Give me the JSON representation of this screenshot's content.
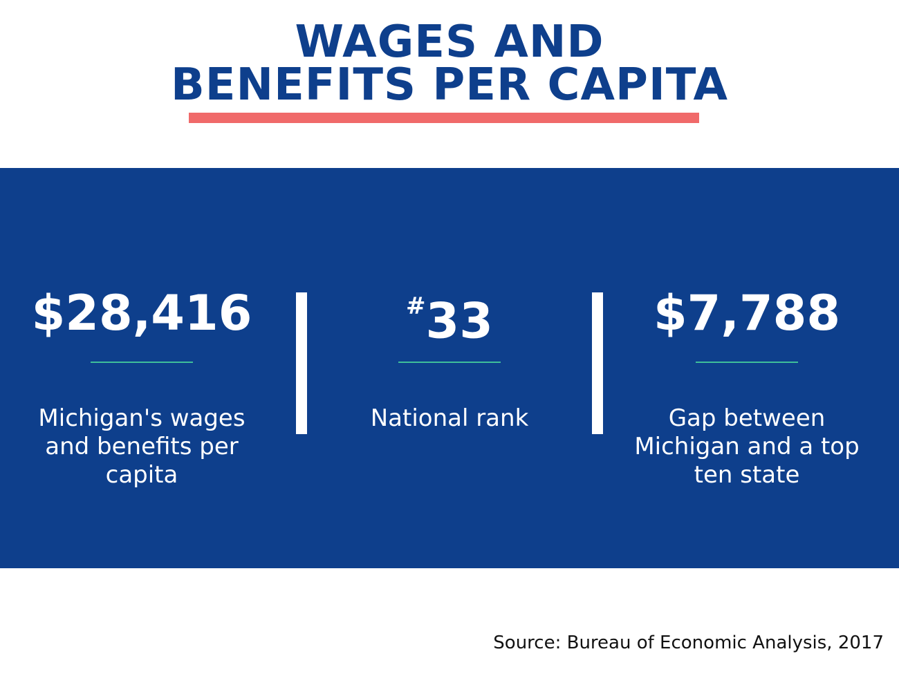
{
  "title": {
    "line1": "WAGES AND",
    "line2": "BENEFITS PER CAPITA"
  },
  "stats": [
    {
      "value": "$28,416",
      "description": "Michigan's wages and benefits per capita"
    },
    {
      "value_prefix": "#",
      "value": "33",
      "description": "National rank"
    },
    {
      "value": "$7,788",
      "description": "Gap between Michigan and a top ten state"
    }
  ],
  "source": "Source: Bureau of Economic Analysis, 2017",
  "colors": {
    "title": "#0e3f8c",
    "underline": "#f06a6a",
    "panel": "#0e3f8c",
    "rule": "#3fbf9a",
    "text_on_panel": "#ffffff"
  }
}
